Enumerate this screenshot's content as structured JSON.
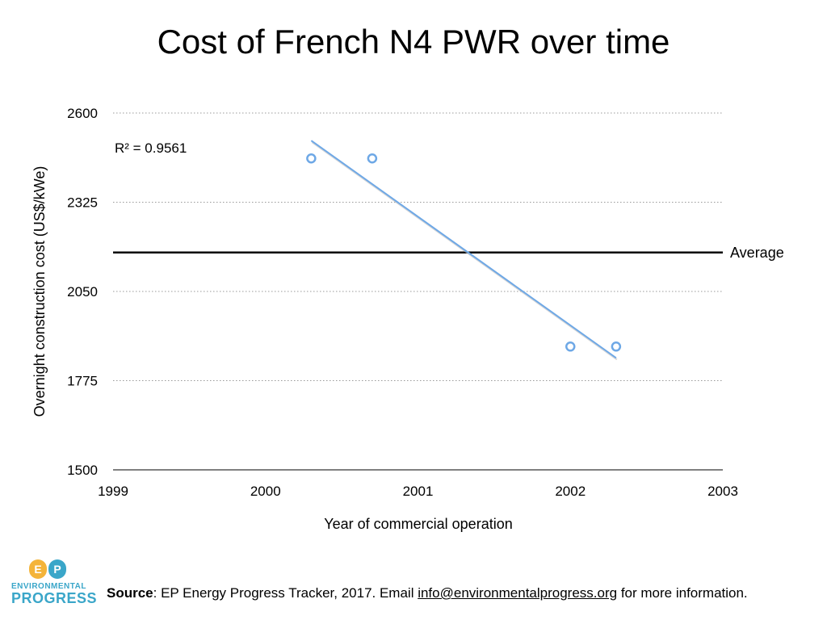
{
  "chart_data": {
    "type": "scatter",
    "title": "Cost of French N4 PWR over time",
    "xlabel": "Year of commercial operation",
    "ylabel": "Overnight construction cost (US$/kWe)",
    "xlim": [
      1999,
      2003
    ],
    "ylim": [
      1500,
      2600
    ],
    "x_ticks": [
      "1999",
      "2000",
      "2001",
      "2002",
      "2003"
    ],
    "y_ticks": [
      "2600",
      "2325",
      "2050",
      "1775",
      "1500"
    ],
    "grid": "horizontal dotted",
    "points": [
      {
        "x": 2000.3,
        "y": 2460
      },
      {
        "x": 2000.7,
        "y": 2460
      },
      {
        "x": 2002.0,
        "y": 1880
      },
      {
        "x": 2002.3,
        "y": 1880
      }
    ],
    "trendline": {
      "type": "linear",
      "from": {
        "x": 2000.3,
        "y": 2515
      },
      "to": {
        "x": 2002.3,
        "y": 1845
      },
      "r_squared_label": "R² = 0.9561"
    },
    "reference_line": {
      "label": "Average",
      "y": 2170
    },
    "colors": {
      "points": "#6ea8e6",
      "trendline": "#6ea8e6",
      "average": "#000000",
      "grid": "#999999"
    }
  },
  "footer": {
    "source_label": "Source",
    "source_text": ": EP Energy Progress Tracker, 2017. Email ",
    "email": "info@environmentalprogress.org",
    "suffix": " for more information."
  },
  "logo": {
    "mark": "EP",
    "line1": "ENVIRONMENTAL",
    "line2": "PROGRESS"
  }
}
